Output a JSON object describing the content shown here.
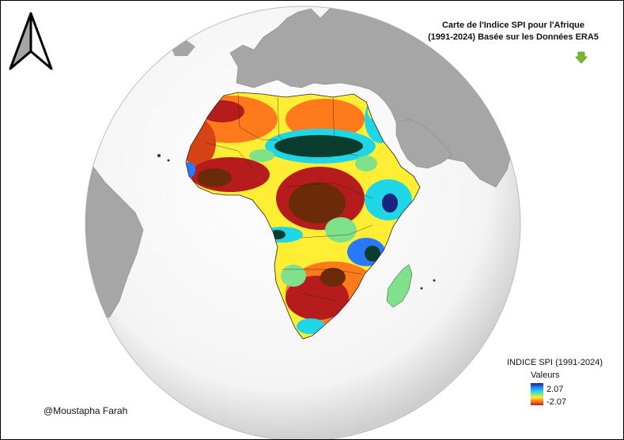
{
  "title": {
    "line1": "Carte de l'Indice SPI pour l'Afrique",
    "line2": "(1991-2024) Basée sur les Données ERA5"
  },
  "legend": {
    "title": "INDICE SPI (1991-2024)",
    "subtitle": "Valeurs",
    "max": "2.07",
    "min": "-2.07",
    "colors": [
      "#1a237e",
      "#2979ff",
      "#1ed6e6",
      "#7fe28a",
      "#ffee33",
      "#ff7a1a",
      "#b71c1c"
    ]
  },
  "credit": "@Moustapha Farah",
  "icons": {
    "north_arrow": "north-arrow-icon",
    "download": "green-down-arrow-icon"
  },
  "colors": {
    "land_other": "#a6a6a6",
    "ocean_globe": "#f4f4f4",
    "spi_dry_extreme": "#6b2a08",
    "spi_wet_extreme": "#0b3d2e"
  }
}
